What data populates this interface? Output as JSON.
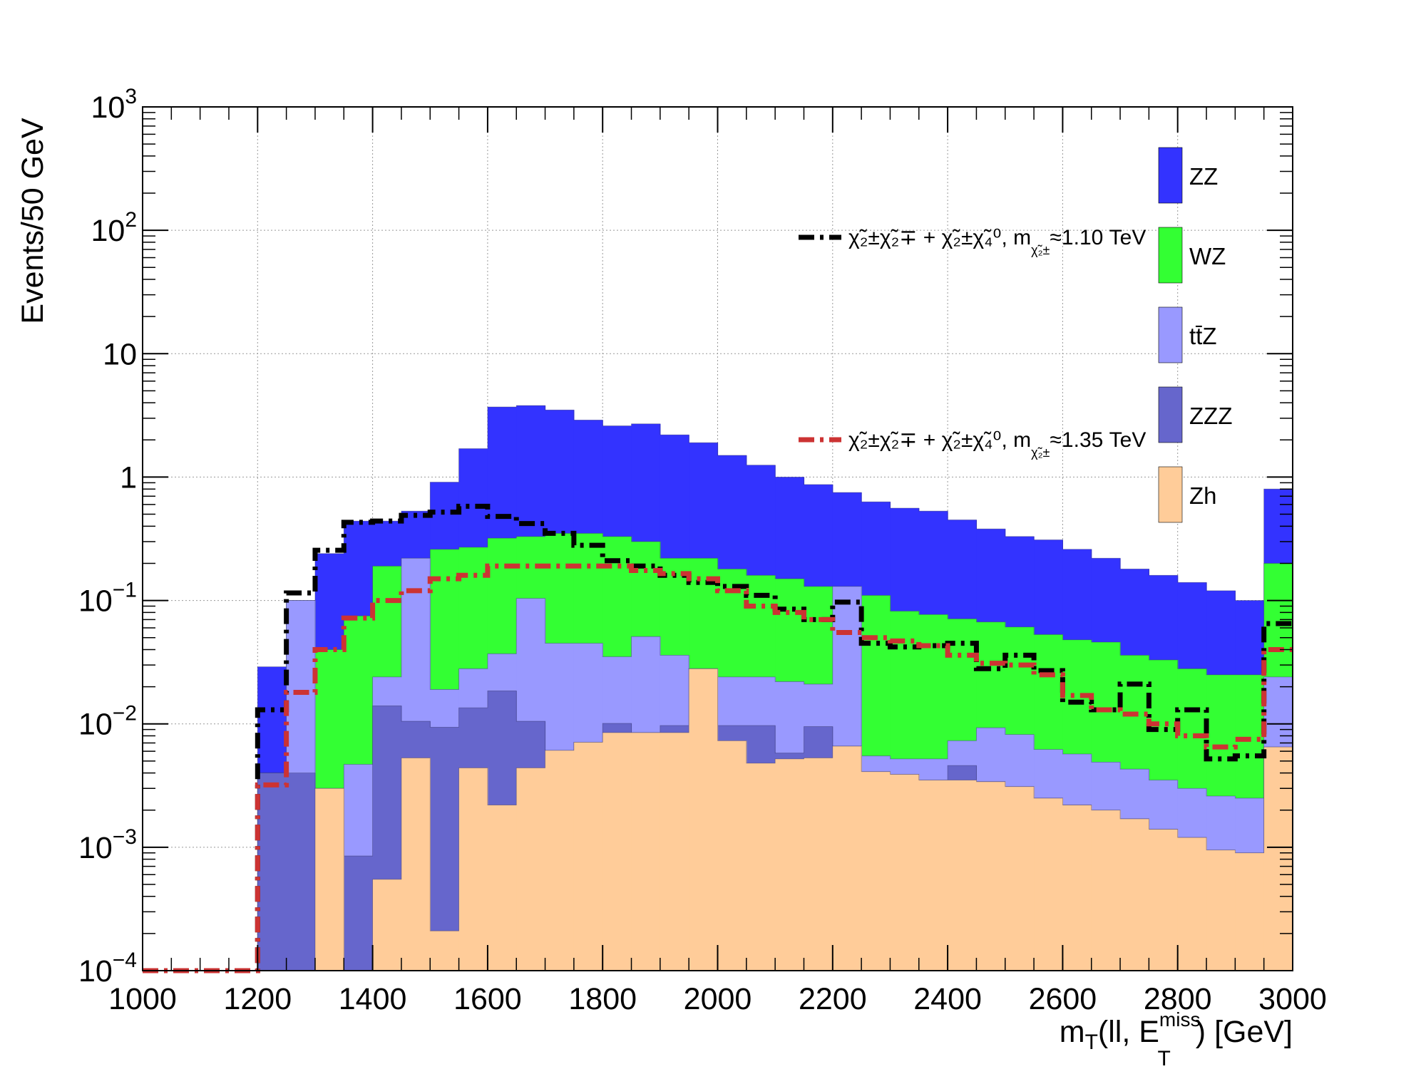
{
  "chart_data": {
    "type": "bar",
    "stacked": true,
    "log_y": true,
    "grid": true,
    "ylabel": "Events/50 GeV",
    "xlabel": {
      "main": "m",
      "sub1": "T",
      "mid": "(ll, E",
      "sup": "miss",
      "sub2": "T",
      "tail": ") [GeV]"
    },
    "xlim": [
      1000,
      3000
    ],
    "ylim": [
      0.0001,
      1000
    ],
    "bin_width": 50,
    "x_ticks": [
      "1000",
      "1200",
      "1400",
      "1600",
      "1800",
      "2000",
      "2200",
      "2400",
      "2600",
      "2800",
      "3000"
    ],
    "y_ticks": [
      {
        "value": 0.0001,
        "base": "10",
        "exp": "−4"
      },
      {
        "value": 0.001,
        "base": "10",
        "exp": "−3"
      },
      {
        "value": 0.01,
        "base": "10",
        "exp": "−2"
      },
      {
        "value": 0.1,
        "base": "10",
        "exp": "−1"
      },
      {
        "value": 1,
        "base": "1",
        "exp": ""
      },
      {
        "value": 10,
        "base": "10",
        "exp": ""
      },
      {
        "value": 100,
        "base": "10",
        "exp": "2"
      },
      {
        "value": 1000,
        "base": "10",
        "exp": "3"
      }
    ],
    "bin_edges_start": [
      1000,
      1050,
      1100,
      1150,
      1200,
      1250,
      1300,
      1350,
      1400,
      1450,
      1500,
      1550,
      1600,
      1650,
      1700,
      1750,
      1800,
      1850,
      1900,
      1950,
      2000,
      2050,
      2100,
      2150,
      2200,
      2250,
      2300,
      2350,
      2400,
      2450,
      2500,
      2550,
      2600,
      2650,
      2700,
      2750,
      2800,
      2850,
      2900,
      2950
    ],
    "stack_totals": [
      {
        "name": "Zh",
        "color": "#FFCC99",
        "values": [
          0,
          0,
          0,
          0,
          0,
          0,
          0.003,
          0,
          0.00055,
          0.0053,
          0.00021,
          0.0044,
          0.0022,
          0.0044,
          0.0061,
          0.0071,
          0.0085,
          0.0085,
          0.0085,
          0.028,
          0.0073,
          0.0048,
          0.0052,
          0.0053,
          0.0066,
          0.0041,
          0.0039,
          0.0035,
          0.0035,
          0.0034,
          0.0031,
          0.0025,
          0.0022,
          0.002,
          0.0017,
          0.0014,
          0.0012,
          0.00095,
          0.0009,
          0.0065
        ]
      },
      {
        "name": "ZZZ",
        "color": "#6666CC",
        "values": [
          0,
          0,
          0,
          0,
          0.004,
          0.004,
          0.003,
          0.00085,
          0.014,
          0.0105,
          0.0094,
          0.0135,
          0.0185,
          0.0105,
          0.0061,
          0.0071,
          0.0101,
          0.0085,
          0.0097,
          0.028,
          0.0097,
          0.0097,
          0.0058,
          0.0095,
          0.0066,
          0.0041,
          0.0039,
          0.0035,
          0.0046,
          0.0034,
          0.0031,
          0.0025,
          0.0022,
          0.002,
          0.0017,
          0.0014,
          0.0012,
          0.00095,
          0.0009,
          0.0065
        ]
      },
      {
        "name": "tt̄Z",
        "color": "#9999FF",
        "values": [
          0,
          0,
          0,
          0,
          0.004,
          0.1,
          0.003,
          0.0047,
          0.024,
          0.22,
          0.019,
          0.028,
          0.037,
          0.104,
          0.045,
          0.045,
          0.035,
          0.051,
          0.036,
          0.028,
          0.024,
          0.024,
          0.022,
          0.021,
          0.13,
          0.0055,
          0.0052,
          0.0052,
          0.0073,
          0.0093,
          0.0082,
          0.0062,
          0.0057,
          0.0049,
          0.0043,
          0.0035,
          0.003,
          0.0026,
          0.0025,
          0.024
        ]
      },
      {
        "name": "WZ",
        "color": "#33FF33",
        "values": [
          0,
          0,
          0,
          0,
          0.004,
          0.1,
          0.04,
          0.075,
          0.19,
          0.22,
          0.26,
          0.27,
          0.32,
          0.33,
          0.35,
          0.35,
          0.33,
          0.3,
          0.22,
          0.22,
          0.18,
          0.16,
          0.15,
          0.13,
          0.13,
          0.11,
          0.082,
          0.077,
          0.071,
          0.067,
          0.061,
          0.053,
          0.048,
          0.046,
          0.036,
          0.033,
          0.028,
          0.025,
          0.025,
          0.2
        ]
      },
      {
        "name": "ZZ",
        "color": "#3333FF",
        "values": [
          0,
          0,
          0,
          0,
          0.029,
          0.1,
          0.24,
          0.44,
          0.44,
          0.53,
          0.91,
          1.7,
          3.7,
          3.8,
          3.5,
          2.9,
          2.6,
          2.7,
          2.2,
          1.9,
          1.5,
          1.25,
          1.0,
          0.87,
          0.75,
          0.63,
          0.56,
          0.53,
          0.45,
          0.38,
          0.33,
          0.31,
          0.26,
          0.22,
          0.18,
          0.16,
          0.14,
          0.12,
          0.1,
          0.8
        ]
      }
    ],
    "legend": [
      {
        "label": "ZZ",
        "color": "#3333FF"
      },
      {
        "label": "WZ",
        "color": "#33FF33"
      },
      {
        "label": "tt̄Z",
        "color": "#9999FF"
      },
      {
        "label": "ZZZ",
        "color": "#6666CC"
      },
      {
        "label": "Zh",
        "color": "#FFCC99"
      }
    ],
    "signals": [
      {
        "name_lead": "χ̃₂±χ̃₂∓ + χ̃₂±χ̃₄⁰, m",
        "name_sub": "χ̃₂±",
        "name_tail": "≈1.10 TeV",
        "color": "#000000",
        "values": [
          0.0001,
          0.0001,
          0.0001,
          0.0001,
          0.013,
          0.115,
          0.255,
          0.43,
          0.44,
          0.49,
          0.52,
          0.58,
          0.48,
          0.42,
          0.35,
          0.28,
          0.21,
          0.19,
          0.16,
          0.14,
          0.13,
          0.11,
          0.085,
          0.07,
          0.097,
          0.045,
          0.042,
          0.043,
          0.045,
          0.028,
          0.036,
          0.027,
          0.015,
          0.013,
          0.021,
          0.009,
          0.013,
          0.0052,
          0.0055,
          0.065
        ]
      },
      {
        "name_lead": "χ̃₂±χ̃₂∓ + χ̃₂±χ̃₄⁰, m",
        "name_sub": "χ̃₂±",
        "name_tail": "≈1.35 TeV",
        "color": "#CC3333",
        "values": [
          0.0001,
          0.0001,
          0.0001,
          0.0001,
          0.0032,
          0.018,
          0.04,
          0.072,
          0.1,
          0.12,
          0.15,
          0.16,
          0.19,
          0.19,
          0.19,
          0.19,
          0.19,
          0.175,
          0.165,
          0.15,
          0.12,
          0.09,
          0.08,
          0.07,
          0.055,
          0.05,
          0.047,
          0.043,
          0.036,
          0.031,
          0.03,
          0.025,
          0.017,
          0.013,
          0.012,
          0.01,
          0.008,
          0.0065,
          0.0075,
          0.04
        ]
      }
    ]
  }
}
